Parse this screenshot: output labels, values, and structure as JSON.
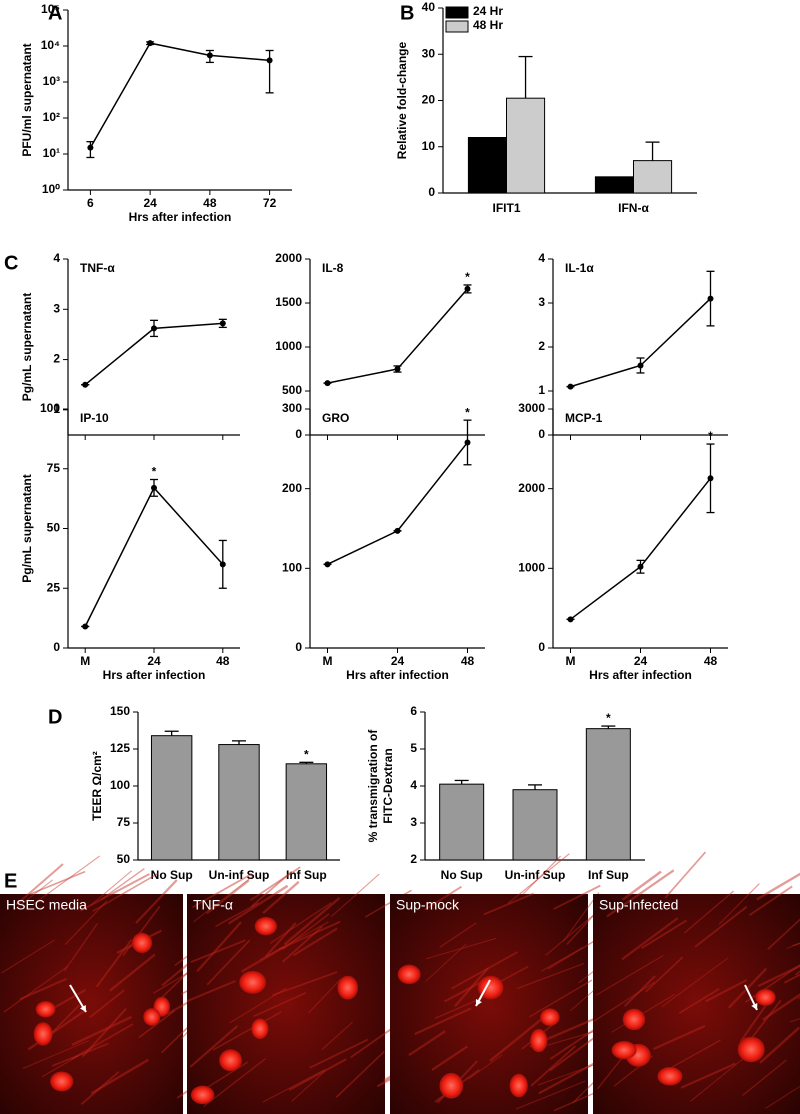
{
  "chart_data": [
    {
      "panel": "A",
      "type": "line",
      "log_y": true,
      "categories": [
        "6",
        "24",
        "48",
        "72"
      ],
      "values": [
        15,
        12000,
        5500,
        4000
      ],
      "errors": [
        7,
        1000,
        2000,
        3500
      ],
      "color": "#000000",
      "ylim": [
        1,
        100000
      ],
      "yticks": [
        {
          "value": 1,
          "label": "10⁰"
        },
        {
          "value": 10,
          "label": "10¹"
        },
        {
          "value": 100,
          "label": "10²"
        },
        {
          "value": 1000,
          "label": "10³"
        },
        {
          "value": 10000,
          "label": "10⁴"
        },
        {
          "value": 100000,
          "label": "10⁵"
        }
      ],
      "ylabel": "PFU/ml supernatant",
      "xlabel": "Hrs after infection"
    },
    {
      "panel": "B",
      "type": "bar",
      "categories": [
        "IFIT1",
        "IFN-α"
      ],
      "series": [
        {
          "name": "24 Hr",
          "color": "#000000",
          "values": [
            12,
            3.5
          ]
        },
        {
          "name": "48 Hr",
          "color": "#cccccc",
          "values": [
            20.5,
            7
          ],
          "errors": [
            9,
            4
          ]
        }
      ],
      "ylim": [
        0,
        40
      ],
      "yticks": [
        0,
        10,
        20,
        30,
        40
      ],
      "ylabel": "Relative fold-change",
      "legend": "upper left"
    },
    {
      "panel": "C",
      "type": "line",
      "title": "TNF-α",
      "categories": [
        null,
        null,
        null
      ],
      "values": [
        1.5,
        2.62,
        2.72
      ],
      "errors": [
        0,
        0.16,
        0.08
      ],
      "color": "#000000",
      "ylim": [
        0.5,
        4
      ],
      "yticks": [
        1,
        2,
        3,
        4
      ],
      "ylabel": "Pg/mL supernatant"
    },
    {
      "type": "line",
      "title": "IL-8",
      "categories": [
        null,
        null,
        null
      ],
      "values": [
        590,
        750,
        1660
      ],
      "errors": [
        0,
        35,
        45
      ],
      "color": "#000000",
      "ylim": [
        0,
        2000
      ],
      "yticks": [
        0,
        500,
        1000,
        1500,
        2000
      ],
      "significant": [
        false,
        false,
        true
      ],
      "significance_mark": "*"
    },
    {
      "type": "line",
      "title": "IL-1α",
      "categories": [
        null,
        null,
        null
      ],
      "values": [
        1.1,
        1.58,
        3.1
      ],
      "errors": [
        0,
        0.17,
        0.62
      ],
      "color": "#000000",
      "ylim": [
        0,
        4
      ],
      "yticks": [
        0,
        1,
        2,
        3,
        4
      ]
    },
    {
      "type": "line",
      "title": "IP-10",
      "categories": [
        "M",
        "24",
        "48"
      ],
      "values": [
        9,
        67,
        35
      ],
      "errors": [
        0,
        3.5,
        10
      ],
      "color": "#000000",
      "ylim": [
        0,
        100
      ],
      "yticks": [
        0,
        25,
        50,
        75,
        100
      ],
      "ylabel": "Pg/mL supernatant",
      "xlabel": "Hrs after infection",
      "significant": [
        false,
        true,
        false
      ],
      "significance_mark": "*"
    },
    {
      "type": "line",
      "title": "GRO",
      "categories": [
        "M",
        "24",
        "48"
      ],
      "values": [
        105,
        147,
        258
      ],
      "errors": [
        0,
        0,
        28
      ],
      "color": "#000000",
      "ylim": [
        0,
        300
      ],
      "yticks": [
        0,
        100,
        200,
        300
      ],
      "xlabel": "Hrs after infection",
      "significant": [
        false,
        false,
        true
      ],
      "significance_mark": "*"
    },
    {
      "type": "line",
      "title": "MCP-1",
      "categories": [
        "M",
        "24",
        "48"
      ],
      "values": [
        360,
        1020,
        2130
      ],
      "errors": [
        0,
        80,
        430
      ],
      "color": "#000000",
      "ylim": [
        0,
        3000
      ],
      "yticks": [
        0,
        1000,
        2000,
        3000
      ],
      "xlabel": "Hrs after infection",
      "significant": [
        false,
        false,
        true
      ],
      "significance_mark": "*"
    },
    {
      "panel": "D",
      "type": "bar",
      "categories": [
        "No Sup",
        "Un-inf Sup",
        "Inf Sup"
      ],
      "values": [
        134,
        128,
        115
      ],
      "errors": [
        3,
        2.5,
        1
      ],
      "color": "#999999",
      "ylim": [
        50,
        150
      ],
      "yticks": [
        50,
        75,
        100,
        125,
        150
      ],
      "ylabel": "TEER Ω/cm²",
      "significant": [
        false,
        false,
        true
      ],
      "significance_mark": "*"
    },
    {
      "type": "bar",
      "categories": [
        "No Sup",
        "Un-inf Sup",
        "Inf Sup"
      ],
      "values": [
        4.05,
        3.9,
        5.55
      ],
      "errors": [
        0.1,
        0.13,
        0.07
      ],
      "color": "#999999",
      "ylim": [
        2,
        6
      ],
      "yticks": [
        2,
        3,
        4,
        5,
        6
      ],
      "ylabel": [
        "% transmigration of",
        "FITC-Dextran"
      ],
      "significant": [
        false,
        false,
        true
      ],
      "significance_mark": "*"
    }
  ],
  "panel_e": {
    "panel": "E",
    "images": [
      "HSEC media",
      "TNF-α",
      "Sup-mock",
      "Sup-Infected"
    ]
  }
}
